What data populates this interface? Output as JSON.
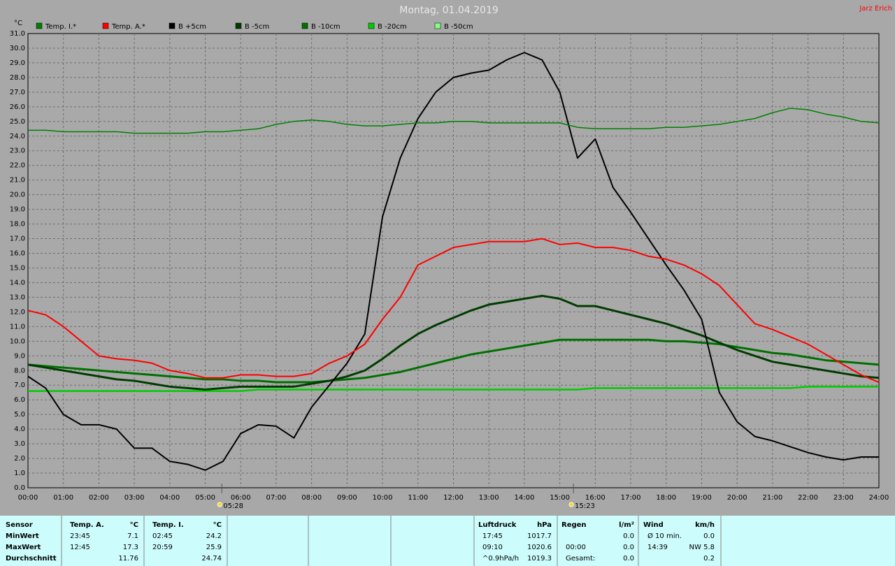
{
  "header": {
    "user": "Jarz Erich"
  },
  "chart_data": {
    "type": "line",
    "title": "Montag, 01.04.2019",
    "y_label": "°C",
    "x": [
      0,
      0.5,
      1,
      1.5,
      2,
      2.5,
      3,
      3.5,
      4,
      4.5,
      5,
      5.5,
      6,
      6.5,
      7,
      7.5,
      8,
      8.5,
      9,
      9.5,
      10,
      10.5,
      11,
      11.5,
      12,
      12.5,
      13,
      13.5,
      14,
      14.5,
      15,
      15.5,
      16,
      16.5,
      17,
      17.5,
      18,
      18.5,
      19,
      19.5,
      20,
      20.5,
      21,
      21.5,
      22,
      22.5,
      23,
      23.5,
      24
    ],
    "series": [
      {
        "name": "Temp. I.*",
        "color": "#008000",
        "width": 1.5,
        "values": [
          24.4,
          24.4,
          24.3,
          24.3,
          24.3,
          24.3,
          24.2,
          24.2,
          24.2,
          24.2,
          24.3,
          24.3,
          24.4,
          24.5,
          24.8,
          25.0,
          25.1,
          25.0,
          24.8,
          24.7,
          24.7,
          24.8,
          24.9,
          24.9,
          25.0,
          25.0,
          24.9,
          24.9,
          24.9,
          24.9,
          24.9,
          24.6,
          24.5,
          24.5,
          24.5,
          24.5,
          24.6,
          24.6,
          24.7,
          24.8,
          25.0,
          25.2,
          25.6,
          25.9,
          25.8,
          25.5,
          25.3,
          25.0,
          24.9
        ]
      },
      {
        "name": "Temp. A.*",
        "color": "#ff0000",
        "width": 2,
        "values": [
          12.1,
          11.8,
          11.0,
          10.0,
          9.0,
          8.8,
          8.7,
          8.5,
          8.0,
          7.8,
          7.5,
          7.5,
          7.7,
          7.7,
          7.6,
          7.6,
          7.8,
          8.5,
          9.0,
          9.8,
          11.5,
          13.0,
          15.2,
          15.8,
          16.4,
          16.6,
          16.8,
          16.8,
          16.8,
          17.0,
          16.6,
          16.7,
          16.4,
          16.4,
          16.2,
          15.8,
          15.6,
          15.2,
          14.6,
          13.8,
          12.5,
          11.2,
          10.8,
          10.3,
          9.8,
          9.1,
          8.4,
          7.7,
          7.2
        ]
      },
      {
        "name": "B +5cm",
        "color": "#000000",
        "width": 2,
        "values": [
          7.6,
          6.8,
          5.0,
          4.3,
          4.3,
          4.0,
          2.7,
          2.7,
          1.8,
          1.6,
          1.2,
          1.8,
          3.7,
          4.3,
          4.2,
          3.4,
          5.5,
          7.0,
          8.5,
          10.5,
          18.5,
          22.5,
          25.2,
          27.0,
          28.0,
          28.3,
          28.5,
          29.2,
          29.7,
          29.2,
          27.0,
          22.5,
          23.8,
          20.5,
          18.8,
          17.0,
          15.2,
          13.5,
          11.5,
          6.5,
          4.5,
          3.5,
          3.2,
          2.8,
          2.4,
          2.1,
          1.9,
          2.1,
          2.1
        ]
      },
      {
        "name": "B -5cm",
        "color": "#003c00",
        "width": 3,
        "values": [
          8.4,
          8.2,
          8.0,
          7.8,
          7.6,
          7.4,
          7.3,
          7.1,
          6.9,
          6.8,
          6.7,
          6.8,
          6.9,
          6.9,
          6.9,
          6.9,
          7.1,
          7.3,
          7.6,
          8.0,
          8.8,
          9.7,
          10.5,
          11.1,
          11.6,
          12.1,
          12.5,
          12.7,
          12.9,
          13.1,
          12.9,
          12.4,
          12.4,
          12.1,
          11.8,
          11.5,
          11.2,
          10.8,
          10.4,
          9.9,
          9.4,
          9.0,
          8.6,
          8.4,
          8.2,
          8.0,
          7.8,
          7.6,
          7.5
        ]
      },
      {
        "name": "B -10cm",
        "color": "#007000",
        "width": 3,
        "values": [
          8.4,
          8.3,
          8.2,
          8.1,
          8.0,
          7.9,
          7.8,
          7.7,
          7.6,
          7.5,
          7.4,
          7.4,
          7.3,
          7.3,
          7.2,
          7.2,
          7.2,
          7.3,
          7.4,
          7.5,
          7.7,
          7.9,
          8.2,
          8.5,
          8.8,
          9.1,
          9.3,
          9.5,
          9.7,
          9.9,
          10.1,
          10.1,
          10.1,
          10.1,
          10.1,
          10.1,
          10.0,
          10.0,
          9.9,
          9.8,
          9.6,
          9.4,
          9.2,
          9.1,
          8.9,
          8.7,
          8.6,
          8.5,
          8.4
        ]
      },
      {
        "name": "B -20cm",
        "color": "#00cc00",
        "width": 2.5,
        "values": [
          6.6,
          6.6,
          6.6,
          6.6,
          6.6,
          6.6,
          6.6,
          6.6,
          6.6,
          6.6,
          6.6,
          6.6,
          6.6,
          6.7,
          6.7,
          6.7,
          6.7,
          6.7,
          6.7,
          6.7,
          6.7,
          6.7,
          6.7,
          6.7,
          6.7,
          6.7,
          6.7,
          6.7,
          6.7,
          6.7,
          6.7,
          6.7,
          6.8,
          6.8,
          6.8,
          6.8,
          6.8,
          6.8,
          6.8,
          6.8,
          6.8,
          6.8,
          6.8,
          6.8,
          6.9,
          6.9,
          6.9,
          6.9,
          6.9
        ]
      },
      {
        "name": "B -50cm",
        "color": "#80ff80",
        "width": 1,
        "values": [
          6.6,
          6.6,
          6.6,
          6.6,
          6.6,
          6.6,
          6.6,
          6.6,
          6.6,
          6.6,
          6.6,
          6.6,
          6.6,
          6.7,
          6.7,
          6.7,
          6.7,
          6.7,
          6.7,
          6.7,
          6.7,
          6.7,
          6.7,
          6.7,
          6.7,
          6.7,
          6.7,
          6.7,
          6.7,
          6.7,
          6.7,
          6.7,
          6.8,
          6.8,
          6.8,
          6.8,
          6.8,
          6.8,
          6.8,
          6.8,
          6.8,
          6.8,
          6.8,
          6.8,
          6.9,
          6.9,
          6.9,
          6.9,
          6.9
        ]
      }
    ],
    "xlim": [
      0,
      24
    ],
    "ylim": [
      0,
      31
    ],
    "grid": true,
    "xticks": [
      {
        "value": 0,
        "label": "00:00"
      },
      {
        "value": 1,
        "label": "01:00"
      },
      {
        "value": 2,
        "label": "02:00"
      },
      {
        "value": 3,
        "label": "03:00"
      },
      {
        "value": 4,
        "label": "04:00"
      },
      {
        "value": 5,
        "label": "05:00"
      },
      {
        "value": 6,
        "label": "06:00"
      },
      {
        "value": 7,
        "label": "07:00"
      },
      {
        "value": 8,
        "label": "08:00"
      },
      {
        "value": 9,
        "label": "09:00"
      },
      {
        "value": 10,
        "label": "10:00"
      },
      {
        "value": 11,
        "label": "11:00"
      },
      {
        "value": 12,
        "label": "12:00"
      },
      {
        "value": 13,
        "label": "13:00"
      },
      {
        "value": 14,
        "label": "14:00"
      },
      {
        "value": 15,
        "label": "15:00"
      },
      {
        "value": 16,
        "label": "16:00"
      },
      {
        "value": 17,
        "label": "17:00"
      },
      {
        "value": 18,
        "label": "18:00"
      },
      {
        "value": 19,
        "label": "19:00"
      },
      {
        "value": 20,
        "label": "20:00"
      },
      {
        "value": 21,
        "label": "21:00"
      },
      {
        "value": 22,
        "label": "22:00"
      },
      {
        "value": 23,
        "label": "23:00"
      },
      {
        "value": 24,
        "label": "24:00"
      }
    ],
    "yticks": [
      {
        "value": 0,
        "label": "0.0"
      },
      {
        "value": 1,
        "label": "1.0"
      },
      {
        "value": 2,
        "label": "2.0"
      },
      {
        "value": 3,
        "label": "3.0"
      },
      {
        "value": 4,
        "label": "4.0"
      },
      {
        "value": 5,
        "label": "5.0"
      },
      {
        "value": 6,
        "label": "6.0"
      },
      {
        "value": 7,
        "label": "7.0"
      },
      {
        "value": 8,
        "label": "8.0"
      },
      {
        "value": 9,
        "label": "9.0"
      },
      {
        "value": 10,
        "label": "10.0"
      },
      {
        "value": 11,
        "label": "11.0"
      },
      {
        "value": 12,
        "label": "12.0"
      },
      {
        "value": 13,
        "label": "13.0"
      },
      {
        "value": 14,
        "label": "14.0"
      },
      {
        "value": 15,
        "label": "15.0"
      },
      {
        "value": 16,
        "label": "16.0"
      },
      {
        "value": 17,
        "label": "17.0"
      },
      {
        "value": 18,
        "label": "18.0"
      },
      {
        "value": 19,
        "label": "19.0"
      },
      {
        "value": 20,
        "label": "20.0"
      },
      {
        "value": 21,
        "label": "21.0"
      },
      {
        "value": 22,
        "label": "22.0"
      },
      {
        "value": 23,
        "label": "23.0"
      },
      {
        "value": 24,
        "label": "24.0"
      },
      {
        "value": 25,
        "label": "25.0"
      },
      {
        "value": 26,
        "label": "26.0"
      },
      {
        "value": 27,
        "label": "27.0"
      },
      {
        "value": 28,
        "label": "28.0"
      },
      {
        "value": 29,
        "label": "29.0"
      },
      {
        "value": 30,
        "label": "30.0"
      },
      {
        "value": 31,
        "label": "31.0"
      }
    ],
    "annotations": [
      {
        "x": 5.4667,
        "label": "05:28"
      },
      {
        "x": 15.3833,
        "label": "15:23"
      }
    ]
  },
  "table": {
    "blocks": [
      {
        "rows": [
          [
            "Sensor",
            "Temp. A.",
            "°C",
            "Temp. I.",
            "°C"
          ],
          [
            "MinWert",
            "23:45",
            "7.1",
            "02:45",
            "24.2"
          ],
          [
            "MaxWert",
            "12:45",
            "17.3",
            "20:59",
            "25.9"
          ],
          [
            "Durchschnitt",
            null,
            "11.76",
            null,
            "24.74"
          ]
        ]
      },
      {
        "rows": [
          [
            "Luftdruck",
            "hPa"
          ],
          [
            "17:45",
            "1017.7"
          ],
          [
            "09:10",
            "1020.6"
          ],
          [
            "^0.9hPa/h",
            "1019.3"
          ]
        ]
      },
      {
        "rows": [
          [
            "Regen",
            "l/m²"
          ],
          [
            null,
            "0.0"
          ],
          [
            "00:00",
            "0.0"
          ],
          [
            "Gesamt:",
            "0.0"
          ]
        ]
      },
      {
        "rows": [
          [
            "Wind",
            "km/h"
          ],
          [
            "Ø 10 min.",
            "0.0"
          ],
          [
            "14:39",
            "NW 5.8"
          ],
          [
            null,
            "0.2"
          ]
        ]
      }
    ]
  }
}
